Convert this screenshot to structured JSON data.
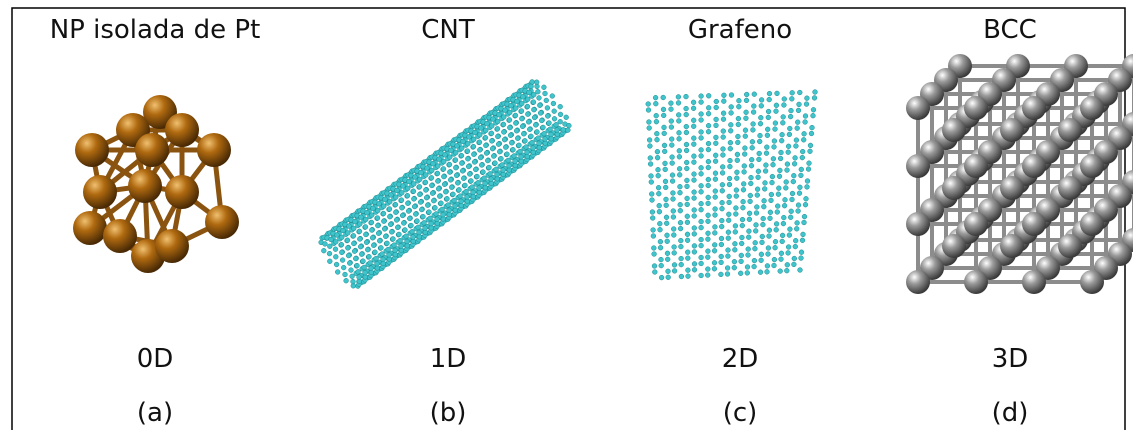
{
  "panels": [
    {
      "title": "NP isolada de Pt",
      "dimension": "0D",
      "label": "(a)"
    },
    {
      "title": "CNT",
      "dimension": "1D",
      "label": "(b)"
    },
    {
      "title": "Grafeno",
      "dimension": "2D",
      "label": "(c)"
    },
    {
      "title": "BCC",
      "dimension": "3D",
      "label": "(d)"
    }
  ]
}
